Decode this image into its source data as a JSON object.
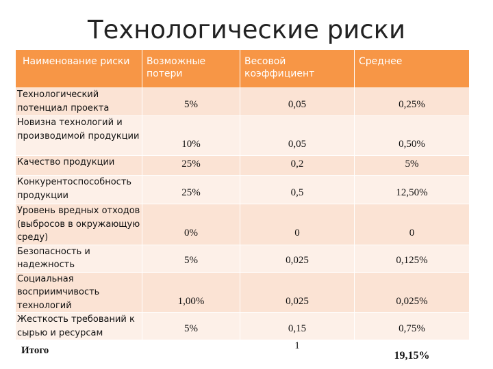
{
  "header": {
    "title": "Технологические риски"
  },
  "table": {
    "columns": [
      "Наименование риски",
      "Возможные потери",
      "Весовой коэффициент",
      "Среднее"
    ],
    "rows": [
      [
        "Технологический потенциал проекта",
        "5%",
        "0,05",
        "0,25%"
      ],
      [
        "Новизна технологий и производимой продукции",
        "10%",
        "0,05",
        "0,50%"
      ],
      [
        "Качество продукции",
        "25%",
        "0,2",
        "5%"
      ],
      [
        "Конкурентоспособность продукции",
        "25%",
        "0,5",
        "12,50%"
      ],
      [
        "Уровень вредных отходов (выбросов в окружающую среду)",
        "0%",
        "0",
        "0"
      ],
      [
        "Безопасность и надежность",
        "5%",
        "0,025",
        "0,125%"
      ],
      [
        "Социальная восприимчивость технологий",
        "1,00%",
        "0,025",
        "0,025%"
      ],
      [
        "Жесткость требований к сырью и ресурсам",
        "5%",
        "0,15",
        "0,75%"
      ]
    ],
    "total": {
      "label": "Итого",
      "weight": "1",
      "avg": "19,15%"
    }
  }
}
